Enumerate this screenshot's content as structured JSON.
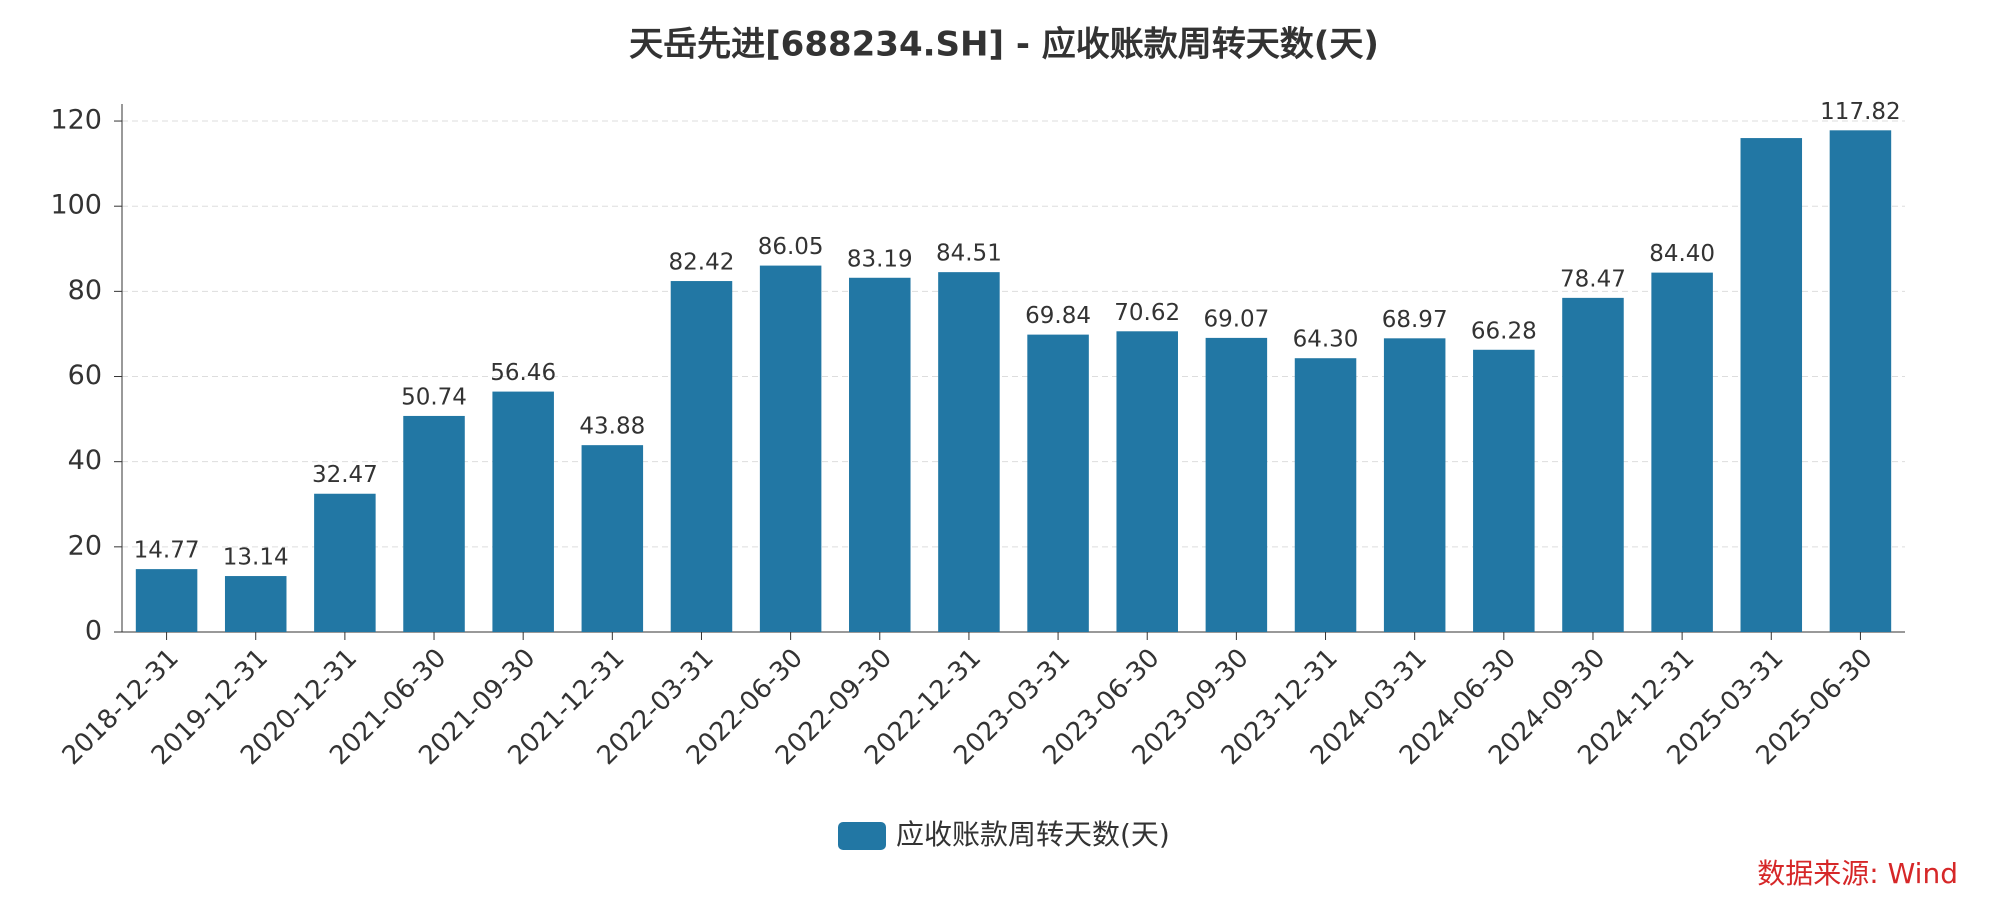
{
  "chart_data": {
    "type": "bar",
    "title": "天岳先进[688234.SH] - 应收账款周转天数(天)",
    "categories": [
      "2018-12-31",
      "2019-12-31",
      "2020-12-31",
      "2021-06-30",
      "2021-09-30",
      "2021-12-31",
      "2022-03-31",
      "2022-06-30",
      "2022-09-30",
      "2022-12-31",
      "2023-03-31",
      "2023-06-30",
      "2023-09-30",
      "2023-12-31",
      "2024-03-31",
      "2024-06-30",
      "2024-09-30",
      "2024-12-31",
      "2025-03-31",
      "2025-06-30"
    ],
    "series": [
      {
        "name": "应收账款周转天数(天)",
        "color": "#2277a4",
        "values": [
          14.77,
          13.14,
          32.47,
          50.74,
          56.46,
          43.88,
          82.42,
          86.05,
          83.19,
          84.51,
          69.84,
          70.62,
          69.07,
          64.3,
          68.97,
          66.28,
          78.47,
          84.4,
          116,
          117.82
        ],
        "value_labels": [
          "14.77",
          "13.14",
          "32.47",
          "50.74",
          "56.46",
          "43.88",
          "82.42",
          "86.05",
          "83.19",
          "84.51",
          "69.84",
          "70.62",
          "69.07",
          "64.30",
          "68.97",
          "66.28",
          "78.47",
          "84.40",
          null,
          "117.82"
        ]
      }
    ],
    "ylim": [
      0,
      124
    ],
    "yticks": [
      0,
      20,
      40,
      60,
      80,
      100,
      120
    ],
    "grid": true,
    "source": "数据来源: Wind"
  }
}
